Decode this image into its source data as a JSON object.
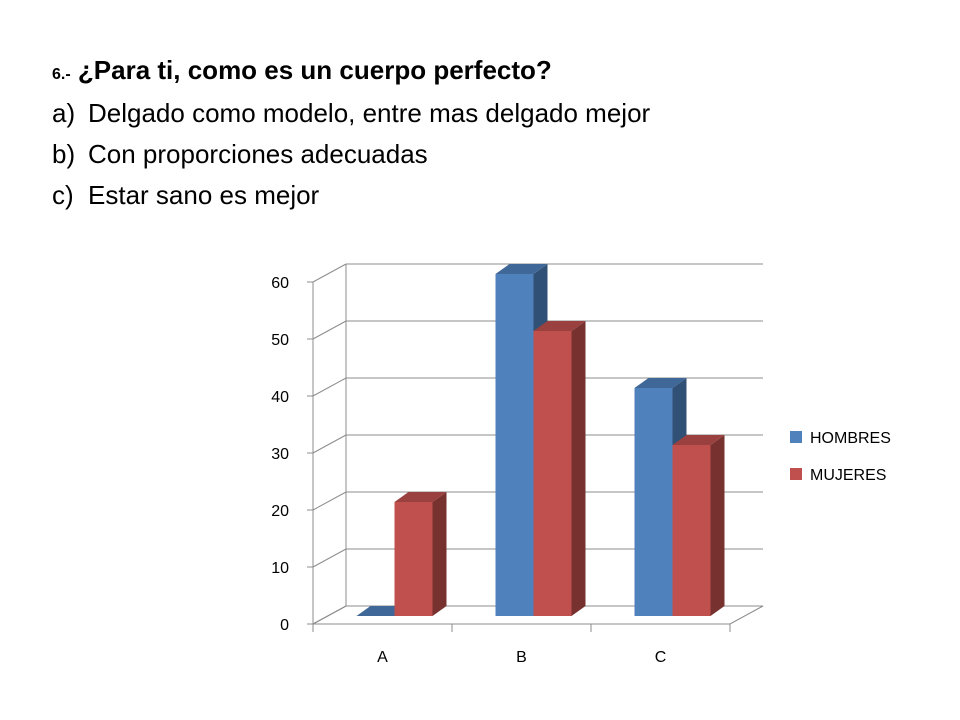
{
  "question": {
    "number": "6.-",
    "title": "¿Para ti, como es un cuerpo perfecto?",
    "options": [
      {
        "letter": "a)",
        "text": "Delgado como modelo, entre mas delgado mejor"
      },
      {
        "letter": "b)",
        "text": "Con proporciones adecuadas"
      },
      {
        "letter": "c)",
        "text": "Estar sano es mejor"
      }
    ]
  },
  "chart_data": {
    "type": "bar",
    "style": "3d-clustered-column",
    "categories": [
      "A",
      "B",
      "C"
    ],
    "series": [
      {
        "name": "HOMBRES",
        "values": [
          0,
          60,
          40
        ],
        "color": "#4F81BD"
      },
      {
        "name": "MUJERES",
        "values": [
          20,
          50,
          30
        ],
        "color": "#C0504D"
      }
    ],
    "ylim": [
      0,
      60
    ],
    "yticks": [
      "0",
      "10",
      "20",
      "30",
      "40",
      "50",
      "60"
    ],
    "grid": true,
    "legend": "right"
  }
}
